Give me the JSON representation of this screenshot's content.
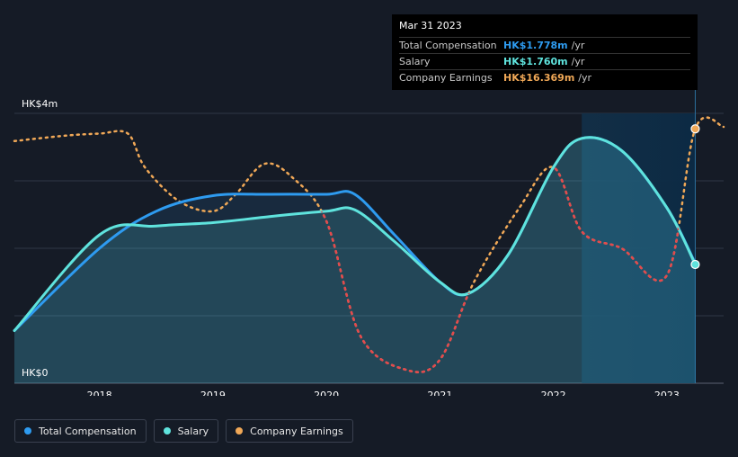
{
  "tooltip": {
    "date": "Mar 31 2023",
    "rows": [
      {
        "label": "Total Compensation",
        "value": "HK$1.778m",
        "unit": "/yr",
        "color": "#2e9bf0"
      },
      {
        "label": "Salary",
        "value": "HK$1.760m",
        "unit": "/yr",
        "color": "#5fe3dd"
      },
      {
        "label": "Company Earnings",
        "value": "HK$16.369m",
        "unit": "/yr",
        "color": "#f0a857"
      }
    ]
  },
  "legend": [
    {
      "label": "Total Compensation",
      "color": "#2e9bf0"
    },
    {
      "label": "Salary",
      "color": "#5fe3dd"
    },
    {
      "label": "Company Earnings",
      "color": "#f0a857"
    }
  ],
  "chart_data": {
    "type": "line",
    "title": "",
    "xlabel": "",
    "ylabel": "",
    "y_tick_labels": [
      "HK$4m",
      "HK$0"
    ],
    "ylim": [
      0,
      4
    ],
    "xlim": [
      2017.25,
      2023.5
    ],
    "x_ticks": [
      2018,
      2019,
      2020,
      2021,
      2022,
      2023
    ],
    "x_tick_labels": [
      "2018",
      "2019",
      "2020",
      "2021",
      "2022",
      "2023"
    ],
    "highlight_region": [
      2022.25,
      2023.25
    ],
    "series": [
      {
        "name": "Total Compensation",
        "color": "#2e9bf0",
        "unit": "HK$m",
        "x": [
          2017.25,
          2018.0,
          2018.5,
          2019.0,
          2019.5,
          2020.0,
          2020.25,
          2020.6,
          2021.0,
          2021.25,
          2021.6,
          2022.0,
          2022.25,
          2022.6,
          2023.0,
          2023.25
        ],
        "y": [
          0.78,
          2.0,
          2.55,
          2.78,
          2.8,
          2.8,
          2.8,
          2.2,
          1.5,
          1.33,
          1.9,
          3.2,
          3.63,
          3.45,
          2.6,
          1.778
        ]
      },
      {
        "name": "Salary",
        "color": "#5fe3dd",
        "unit": "HK$m",
        "x": [
          2017.25,
          2018.0,
          2018.5,
          2019.0,
          2019.5,
          2020.0,
          2020.25,
          2020.6,
          2021.0,
          2021.25,
          2021.6,
          2022.0,
          2022.25,
          2022.6,
          2023.0,
          2023.25
        ],
        "y": [
          0.78,
          2.2,
          2.33,
          2.38,
          2.47,
          2.55,
          2.57,
          2.1,
          1.5,
          1.33,
          1.9,
          3.2,
          3.63,
          3.45,
          2.6,
          1.76
        ]
      },
      {
        "name": "Company Earnings",
        "color": "#f0a857",
        "unit": "scaled",
        "x": [
          2017.25,
          2017.7,
          2018.0,
          2018.25,
          2018.4,
          2018.7,
          2019.0,
          2019.2,
          2019.45,
          2019.7,
          2020.0,
          2020.3,
          2020.7,
          2021.0,
          2021.3,
          2021.7,
          2022.0,
          2022.25,
          2022.6,
          2023.0,
          2023.25,
          2023.5
        ],
        "y": [
          3.59,
          3.67,
          3.7,
          3.7,
          3.2,
          2.7,
          2.55,
          2.8,
          3.25,
          3.05,
          2.4,
          0.7,
          0.2,
          0.35,
          1.5,
          2.6,
          3.2,
          2.25,
          2.0,
          1.6,
          3.77,
          3.8
        ]
      }
    ]
  }
}
